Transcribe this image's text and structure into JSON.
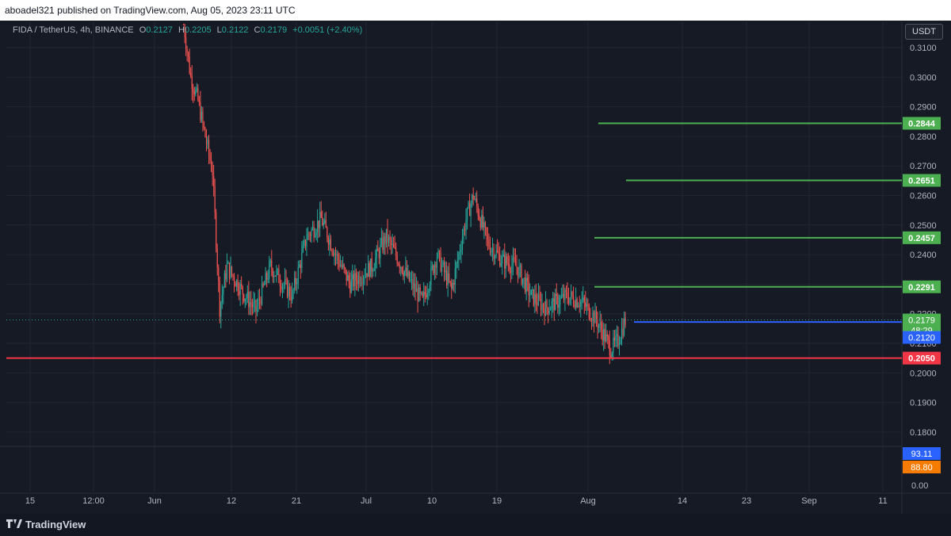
{
  "header": {
    "published_line": "aboadel321 published on TradingView.com, Aug 05, 2023 23:11 UTC"
  },
  "legend": {
    "symbol": "FIDA / TetherUS, 4h, BINANCE",
    "open_label": "O",
    "open": "0.2127",
    "high_label": "H",
    "high": "0.2205",
    "low_label": "L",
    "low": "0.2122",
    "close_label": "C",
    "close": "0.2179",
    "change": "+0.0051 (+2.40%)"
  },
  "price_axis": {
    "currency": "USDT",
    "ticks": [
      "0.3100",
      "0.3000",
      "0.2900",
      "0.2800",
      "0.2700",
      "0.2600",
      "0.2500",
      "0.2400",
      "0.2300",
      "0.2200",
      "0.2100",
      "0.2000",
      "0.1900",
      "0.1800"
    ],
    "indicator_ticks": [
      "0.00"
    ]
  },
  "time_axis": {
    "labels": [
      "15",
      "12:00",
      "Jun",
      "12",
      "21",
      "Jul",
      "10",
      "19",
      "Aug",
      "14",
      "23",
      "Sep",
      "11"
    ]
  },
  "chart_data": {
    "type": "candlestick",
    "symbol": "FIDA / TetherUS",
    "interval": "4h",
    "exchange": "BINANCE",
    "ylim": [
      0.176,
      0.316
    ],
    "current_price": 0.2179,
    "countdown": "48:29",
    "trend_path": [
      {
        "t": "Jun 05",
        "v": 0.318
      },
      {
        "t": "Jun 06",
        "v": 0.3
      },
      {
        "t": "Jun 07",
        "v": 0.292
      },
      {
        "t": "Jun 08",
        "v": 0.28
      },
      {
        "t": "Jun 09",
        "v": 0.268
      },
      {
        "t": "Jun 10",
        "v": 0.222
      },
      {
        "t": "Jun 11",
        "v": 0.236
      },
      {
        "t": "Jun 13",
        "v": 0.228
      },
      {
        "t": "Jun 15",
        "v": 0.221
      },
      {
        "t": "Jun 17",
        "v": 0.236
      },
      {
        "t": "Jun 20",
        "v": 0.226
      },
      {
        "t": "Jun 22",
        "v": 0.246
      },
      {
        "t": "Jun 24",
        "v": 0.252
      },
      {
        "t": "Jun 26",
        "v": 0.24
      },
      {
        "t": "Jun 28",
        "v": 0.23
      },
      {
        "t": "Jul 01",
        "v": 0.236
      },
      {
        "t": "Jul 03",
        "v": 0.246
      },
      {
        "t": "Jul 06",
        "v": 0.232
      },
      {
        "t": "Jul 08",
        "v": 0.224
      },
      {
        "t": "Jul 10",
        "v": 0.24
      },
      {
        "t": "Jul 12",
        "v": 0.228
      },
      {
        "t": "Jul 14",
        "v": 0.252
      },
      {
        "t": "Jul 15",
        "v": 0.26
      },
      {
        "t": "Jul 17",
        "v": 0.244
      },
      {
        "t": "Jul 19",
        "v": 0.238
      },
      {
        "t": "Jul 21",
        "v": 0.236
      },
      {
        "t": "Jul 23",
        "v": 0.226
      },
      {
        "t": "Jul 25",
        "v": 0.222
      },
      {
        "t": "Jul 28",
        "v": 0.226
      },
      {
        "t": "Jul 30",
        "v": 0.224
      },
      {
        "t": "Aug 01",
        "v": 0.218
      },
      {
        "t": "Aug 03",
        "v": 0.208
      },
      {
        "t": "Aug 04",
        "v": 0.211
      },
      {
        "t": "Aug 05",
        "v": 0.2179
      }
    ],
    "levels": [
      {
        "price": "0.2844",
        "color": "#4caf50"
      },
      {
        "price": "0.2651",
        "color": "#4caf50"
      },
      {
        "price": "0.2457",
        "color": "#4caf50"
      },
      {
        "price": "0.2291",
        "color": "#4caf50"
      },
      {
        "price": "0.2172",
        "color": "#2962ff"
      },
      {
        "price": "0.2050",
        "color": "#f23645"
      }
    ],
    "price_tags": [
      {
        "value": "0.2179",
        "color": "#4caf50"
      },
      {
        "value": "0.2120",
        "color": "#2962ff"
      }
    ],
    "indicator_values": [
      {
        "value": "93.11",
        "color": "#2962ff"
      },
      {
        "value": "88.80",
        "color": "#f57c00"
      }
    ],
    "colors": {
      "up": "#26a69a",
      "down": "#ef5350",
      "background": "#161a25",
      "grid": "#232632",
      "text": "#b2b5be"
    }
  }
}
